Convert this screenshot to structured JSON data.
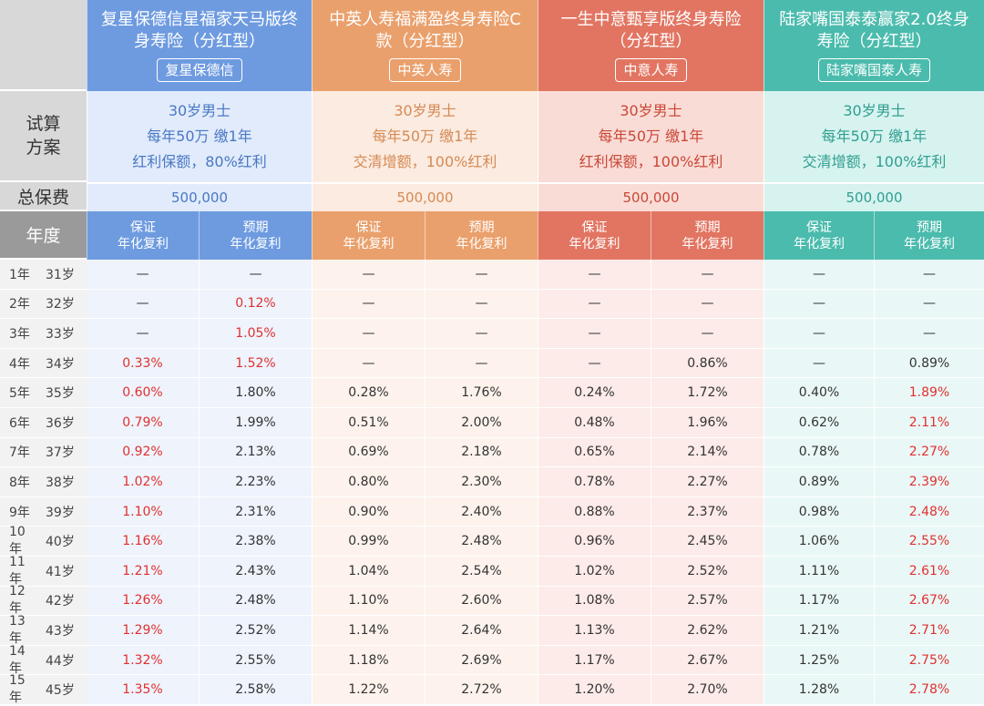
{
  "colors": {
    "fuxing": "#6e9be0",
    "zhongying": "#eaa06c",
    "yisheng": "#e27562",
    "lujiazui": "#4bbbad",
    "label_bg": "#9a9a9a",
    "highlight_red": "#e03030"
  },
  "labels": {
    "plan": "试算\n方案",
    "premium": "总保费",
    "year": "年度"
  },
  "sub_headers": {
    "guaranteed": "保证\n年化复利",
    "expected": "预期\n年化复利"
  },
  "products": [
    {
      "title": "复星保德信星福家天马版终身寿险（分红型）",
      "company": "复星保德信",
      "plan_line1": "30岁男士",
      "plan_line2": "每年50万 缴1年",
      "plan_line3": "红利保额，80%红利",
      "premium": "500,000"
    },
    {
      "title": "中英人寿福满盈终身寿险C款（分红型）",
      "company": "中英人寿",
      "plan_line1": "30岁男士",
      "plan_line2": "每年50万 缴1年",
      "plan_line3": "交清增额，100%红利",
      "premium": "500,000"
    },
    {
      "title": "一生中意甄享版终身寿险（分红型）",
      "company": "中意人寿",
      "plan_line1": "30岁男士",
      "plan_line2": "每年50万 缴1年",
      "plan_line3": "红利保额，100%红利",
      "premium": "500,000"
    },
    {
      "title": "陆家嘴国泰泰赢家2.0终身寿险（分红型）",
      "company": "陆家嘴国泰人寿",
      "plan_line1": "30岁男士",
      "plan_line2": "每年50万 缴1年",
      "plan_line3": "交清增额，100%红利",
      "premium": "500,000"
    }
  ],
  "rows": [
    {
      "year": "1年",
      "age": "31岁",
      "values": [
        "—",
        "—",
        "—",
        "—",
        "—",
        "—",
        "—",
        "—"
      ],
      "red": []
    },
    {
      "year": "2年",
      "age": "32岁",
      "values": [
        "—",
        "0.12%",
        "—",
        "—",
        "—",
        "—",
        "—",
        "—"
      ],
      "red": [
        1
      ]
    },
    {
      "year": "3年",
      "age": "33岁",
      "values": [
        "—",
        "1.05%",
        "—",
        "—",
        "—",
        "—",
        "—",
        "—"
      ],
      "red": [
        1
      ]
    },
    {
      "year": "4年",
      "age": "34岁",
      "values": [
        "0.33%",
        "1.52%",
        "—",
        "—",
        "—",
        "0.86%",
        "—",
        "0.89%"
      ],
      "red": [
        0,
        1
      ]
    },
    {
      "year": "5年",
      "age": "35岁",
      "values": [
        "0.60%",
        "1.80%",
        "0.28%",
        "1.76%",
        "0.24%",
        "1.72%",
        "0.40%",
        "1.89%"
      ],
      "red": [
        0,
        7
      ]
    },
    {
      "year": "6年",
      "age": "36岁",
      "values": [
        "0.79%",
        "1.99%",
        "0.51%",
        "2.00%",
        "0.48%",
        "1.96%",
        "0.62%",
        "2.11%"
      ],
      "red": [
        0,
        7
      ]
    },
    {
      "year": "7年",
      "age": "37岁",
      "values": [
        "0.92%",
        "2.13%",
        "0.69%",
        "2.18%",
        "0.65%",
        "2.14%",
        "0.78%",
        "2.27%"
      ],
      "red": [
        0,
        7
      ]
    },
    {
      "year": "8年",
      "age": "38岁",
      "values": [
        "1.02%",
        "2.23%",
        "0.80%",
        "2.30%",
        "0.78%",
        "2.27%",
        "0.89%",
        "2.39%"
      ],
      "red": [
        0,
        7
      ]
    },
    {
      "year": "9年",
      "age": "39岁",
      "values": [
        "1.10%",
        "2.31%",
        "0.90%",
        "2.40%",
        "0.88%",
        "2.37%",
        "0.98%",
        "2.48%"
      ],
      "red": [
        0,
        7
      ]
    },
    {
      "year": "10年",
      "age": "40岁",
      "values": [
        "1.16%",
        "2.38%",
        "0.99%",
        "2.48%",
        "0.96%",
        "2.45%",
        "1.06%",
        "2.55%"
      ],
      "red": [
        0,
        7
      ]
    },
    {
      "year": "11年",
      "age": "41岁",
      "values": [
        "1.21%",
        "2.43%",
        "1.04%",
        "2.54%",
        "1.02%",
        "2.52%",
        "1.11%",
        "2.61%"
      ],
      "red": [
        0,
        7
      ]
    },
    {
      "year": "12年",
      "age": "42岁",
      "values": [
        "1.26%",
        "2.48%",
        "1.10%",
        "2.60%",
        "1.08%",
        "2.57%",
        "1.17%",
        "2.67%"
      ],
      "red": [
        0,
        7
      ]
    },
    {
      "year": "13年",
      "age": "43岁",
      "values": [
        "1.29%",
        "2.52%",
        "1.14%",
        "2.64%",
        "1.13%",
        "2.62%",
        "1.21%",
        "2.71%"
      ],
      "red": [
        0,
        7
      ]
    },
    {
      "year": "14年",
      "age": "44岁",
      "values": [
        "1.32%",
        "2.55%",
        "1.18%",
        "2.69%",
        "1.17%",
        "2.67%",
        "1.25%",
        "2.75%"
      ],
      "red": [
        0,
        7
      ]
    },
    {
      "year": "15年",
      "age": "45岁",
      "values": [
        "1.35%",
        "2.58%",
        "1.22%",
        "2.72%",
        "1.20%",
        "2.70%",
        "1.28%",
        "2.78%"
      ],
      "red": [
        0,
        7
      ]
    }
  ]
}
